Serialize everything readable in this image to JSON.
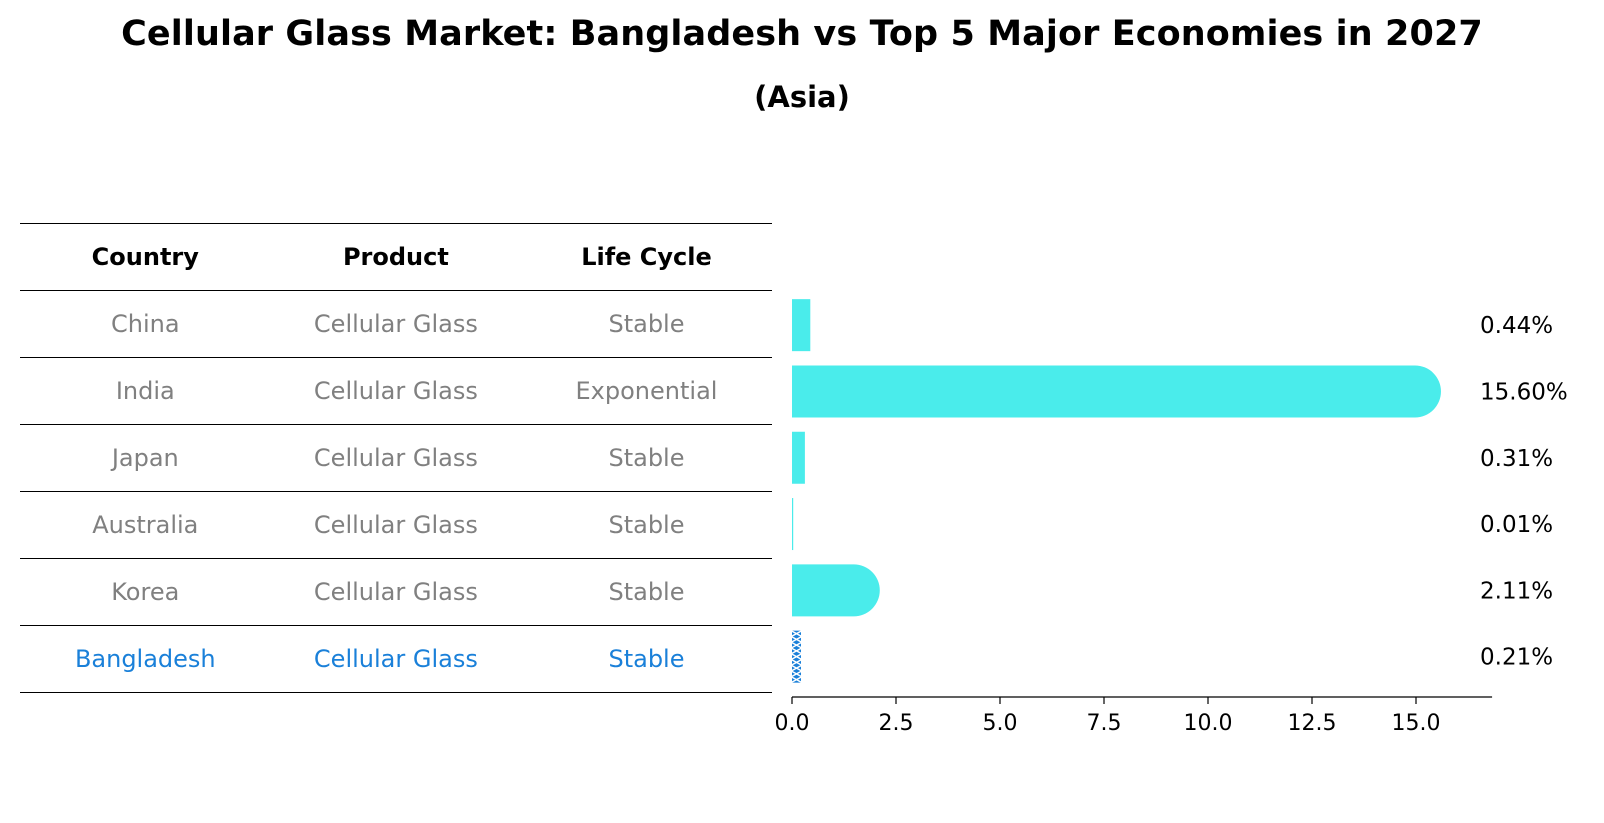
{
  "header": {
    "title": "Cellular Glass Market: Bangladesh vs Top 5 Major Economies in 2027",
    "subtitle": "(Asia)"
  },
  "table": {
    "columns": [
      "Country",
      "Product",
      "Life Cycle"
    ],
    "rows": [
      {
        "country": "China",
        "product": "Cellular Glass",
        "life_cycle": "Stable"
      },
      {
        "country": "India",
        "product": "Cellular Glass",
        "life_cycle": "Exponential"
      },
      {
        "country": "Japan",
        "product": "Cellular Glass",
        "life_cycle": "Stable"
      },
      {
        "country": "Australia",
        "product": "Cellular Glass",
        "life_cycle": "Stable"
      },
      {
        "country": "Korea",
        "product": "Cellular Glass",
        "life_cycle": "Stable"
      },
      {
        "country": "Bangladesh",
        "product": "Cellular Glass",
        "life_cycle": "Stable"
      }
    ]
  },
  "colors": {
    "bar": "#4aeceb",
    "highlight": "#1a80d9",
    "muted_text": "#808080"
  },
  "chart_data": {
    "type": "bar",
    "orientation": "horizontal",
    "categories": [
      "China",
      "India",
      "Japan",
      "Australia",
      "Korea",
      "Bangladesh"
    ],
    "values": [
      0.44,
      15.6,
      0.31,
      0.01,
      2.11,
      0.21
    ],
    "value_labels": [
      "0.44%",
      "15.60%",
      "0.31%",
      "0.01%",
      "2.11%",
      "0.21%"
    ],
    "highlight_category": "Bangladesh",
    "xlim": [
      0,
      16.3
    ],
    "xticks": [
      0,
      2.5,
      5,
      7.5,
      10,
      12.5,
      15
    ],
    "xtick_labels": [
      "0.0",
      "2.5",
      "5.0",
      "7.5",
      "10.0",
      "12.5",
      "15.0"
    ],
    "title": "Cellular Glass Market: Bangladesh vs Top 5 Major Economies in 2027",
    "subtitle": "(Asia)",
    "xlabel": "",
    "ylabel": "",
    "grid": false
  }
}
